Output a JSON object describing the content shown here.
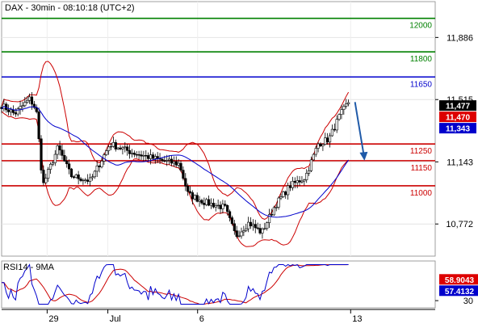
{
  "header": {
    "main_title": "DAX - 30min - 08:10:18 (UTC+2)",
    "rsi_title": "RSI14 - 9MA"
  },
  "chart_data": {
    "type": "candlestick",
    "instrument": "DAX",
    "timeframe": "30min",
    "x_labels": [
      {
        "label": "29",
        "pos": 0.105
      },
      {
        "label": "Jul",
        "pos": 0.245
      },
      {
        "label": "6",
        "pos": 0.452
      },
      {
        "label": "13",
        "pos": 0.805
      }
    ],
    "price_axis": {
      "ylim": [
        10580,
        12100
      ],
      "ticks": [
        {
          "value": 11886,
          "label": "11,886"
        },
        {
          "value": 11515,
          "label": "11,515"
        },
        {
          "value": 11143,
          "label": "11,143"
        },
        {
          "value": 10772,
          "label": "10,772"
        }
      ]
    },
    "levels": [
      {
        "value": 12000,
        "label": "12000",
        "color": "#008000"
      },
      {
        "value": 11800,
        "label": "11800",
        "color": "#008000"
      },
      {
        "value": 11650,
        "label": "11650",
        "color": "#0000cc"
      },
      {
        "value": 11250,
        "label": "11250",
        "color": "#cc0000"
      },
      {
        "value": 11150,
        "label": "11150",
        "color": "#cc0000"
      },
      {
        "value": 11000,
        "label": "11000",
        "color": "#cc0000"
      }
    ],
    "price_tags": [
      {
        "value": 11477,
        "label": "11,477",
        "bg": "#000000"
      },
      {
        "value": 11470,
        "label": "11,470",
        "bg": "#dd0000"
      },
      {
        "value": 11343,
        "label": "11,343",
        "bg": "#0000cc"
      }
    ],
    "forecast_arrow": {
      "from_pos": 0.815,
      "from_value": 11500,
      "to_pos": 0.835,
      "to_value": 11150,
      "color": "#1f5aa8"
    },
    "waypoints": [
      [
        0.0,
        11480
      ],
      [
        0.03,
        11430
      ],
      [
        0.065,
        11520
      ],
      [
        0.08,
        11450
      ],
      [
        0.095,
        11000
      ],
      [
        0.13,
        11230
      ],
      [
        0.16,
        11060
      ],
      [
        0.205,
        11030
      ],
      [
        0.25,
        11250
      ],
      [
        0.3,
        11200
      ],
      [
        0.37,
        11150
      ],
      [
        0.41,
        11130
      ],
      [
        0.43,
        10950
      ],
      [
        0.47,
        10900
      ],
      [
        0.515,
        10870
      ],
      [
        0.54,
        10700
      ],
      [
        0.57,
        10780
      ],
      [
        0.6,
        10720
      ],
      [
        0.63,
        10880
      ],
      [
        0.665,
        11000
      ],
      [
        0.7,
        11050
      ],
      [
        0.73,
        11250
      ],
      [
        0.755,
        11280
      ],
      [
        0.78,
        11420
      ],
      [
        0.8,
        11500
      ]
    ],
    "rsi": {
      "ylim": [
        20,
        85
      ],
      "ticks": [
        {
          "value": 30,
          "label": "30"
        }
      ],
      "tags": [
        {
          "value": 58.9043,
          "label": "58.9043",
          "bg": "#dd0000"
        },
        {
          "value": 57.4132,
          "label": "57.4132",
          "bg": "#0000cc"
        }
      ]
    },
    "colors": {
      "up": "#000000",
      "down": "#000000",
      "ma_fast": "#cc0000",
      "ma_slow": "#0000cc",
      "bollinger": "#cc0000",
      "axis": "#000000"
    }
  }
}
